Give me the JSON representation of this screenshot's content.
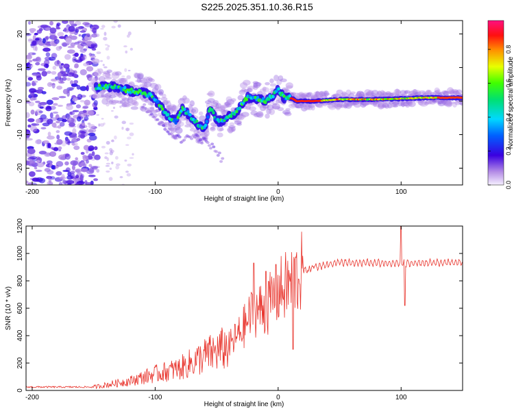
{
  "title": "S225.2025.351.10.36.R15",
  "colors": {
    "snr_line": "#e8322a",
    "ridge": "#5a0fd0",
    "scatter": "#b48ce6"
  },
  "chart_data": [
    {
      "type": "heatmap",
      "xlabel": "Height of straight line (km)",
      "ylabel": "Frequency (Hz)",
      "xlim": [
        -205,
        150
      ],
      "ylim": [
        -25,
        24
      ],
      "xticks": [
        -200,
        -100,
        0,
        100
      ],
      "yticks": [
        -20,
        -10,
        0,
        10,
        20
      ],
      "colorbar": {
        "label": "Normalized spectral amplitude",
        "range": [
          0.0,
          0.97
        ],
        "ticks": [
          0.0,
          0.2,
          0.4,
          0.6,
          0.8
        ]
      },
      "ridge_path": [
        [
          -147,
          4
        ],
        [
          -140,
          4.5
        ],
        [
          -130,
          4
        ],
        [
          -120,
          3
        ],
        [
          -110,
          2.5
        ],
        [
          -102,
          1.5
        ],
        [
          -95,
          -2
        ],
        [
          -88,
          -5
        ],
        [
          -83,
          -6
        ],
        [
          -78,
          -2
        ],
        [
          -70,
          -5
        ],
        [
          -65,
          -7
        ],
        [
          -60,
          -8
        ],
        [
          -55,
          -2
        ],
        [
          -50,
          -6
        ],
        [
          -45,
          -6
        ],
        [
          -40,
          -4
        ],
        [
          -35,
          -4
        ],
        [
          -30,
          -1
        ],
        [
          -25,
          1
        ],
        [
          -20,
          1
        ],
        [
          -15,
          0.5
        ],
        [
          -10,
          0
        ],
        [
          -5,
          1.5
        ],
        [
          0,
          3.5
        ],
        [
          5,
          1
        ],
        [
          10,
          1
        ],
        [
          15,
          0
        ],
        [
          30,
          0
        ],
        [
          50,
          0.5
        ],
        [
          80,
          0.5
        ],
        [
          100,
          0.7
        ],
        [
          120,
          1
        ],
        [
          150,
          1
        ]
      ],
      "secondary_ridge": [
        [
          -110,
          -1
        ],
        [
          -95,
          -7
        ],
        [
          -85,
          -10
        ],
        [
          -78,
          -12
        ],
        [
          -72,
          -10
        ],
        [
          -65,
          -11
        ],
        [
          -55,
          -13
        ],
        [
          -48,
          -16
        ],
        [
          -45,
          -18
        ]
      ]
    },
    {
      "type": "line",
      "xlabel": "Height of straight line (km)",
      "ylabel": "SNR (10 * v/v)",
      "xlim": [
        -205,
        150
      ],
      "ylim": [
        0,
        1200
      ],
      "xticks": [
        -200,
        -100,
        0,
        100
      ],
      "yticks": [
        0,
        200,
        400,
        600,
        800,
        1000,
        1200
      ],
      "series": [
        {
          "name": "SNR",
          "anchors": [
            [
              -205,
              25
            ],
            [
              -150,
              25
            ],
            [
              -140,
              40
            ],
            [
              -120,
              70
            ],
            [
              -100,
              120
            ],
            [
              -80,
              160
            ],
            [
              -60,
              250
            ],
            [
              -40,
              320
            ],
            [
              -30,
              430
            ],
            [
              -20,
              580
            ],
            [
              -10,
              600
            ],
            [
              0,
              720
            ],
            [
              10,
              780
            ],
            [
              20,
              870
            ],
            [
              30,
              900
            ],
            [
              50,
              935
            ],
            [
              80,
              930
            ],
            [
              100,
              930
            ],
            [
              120,
              930
            ],
            [
              150,
              935
            ]
          ],
          "spikes": [
            [
              -20,
              930
            ],
            [
              -10,
              870
            ],
            [
              -2,
              920
            ],
            [
              12,
              300
            ],
            [
              100,
              1200
            ],
            [
              103,
              620
            ]
          ]
        }
      ]
    }
  ]
}
